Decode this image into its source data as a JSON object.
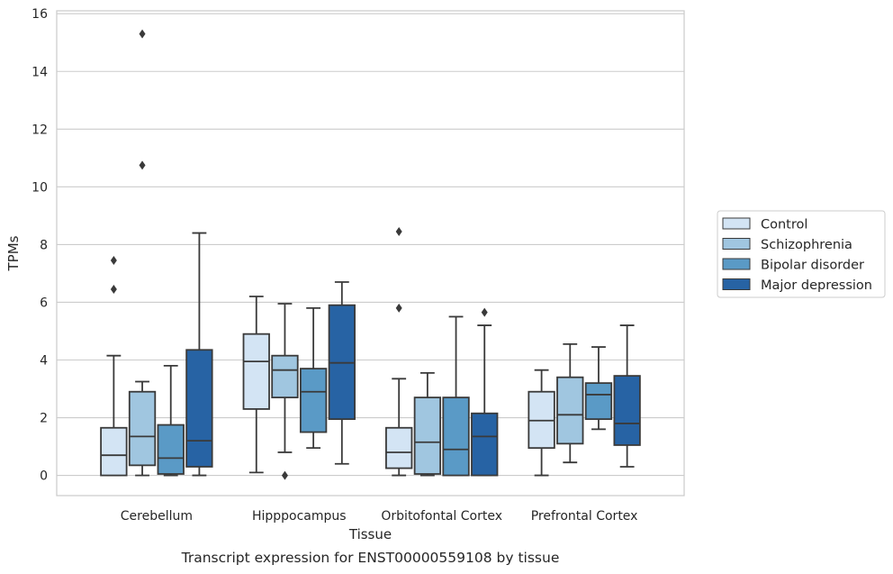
{
  "caption": "Transcript expression for ENST00000559108 by tissue",
  "chart_data": {
    "type": "boxplot",
    "title": "",
    "xlabel": "Tissue",
    "ylabel": "TPMs",
    "ylim": [
      -0.7,
      16.1
    ],
    "yticks": [
      0,
      2,
      4,
      6,
      8,
      10,
      12,
      14,
      16
    ],
    "grid": "horizontal",
    "legend_position": "right",
    "categories": [
      "Cerebellum",
      "Hipppocampus",
      "Orbitofontal Cortex",
      "Prefrontal Cortex"
    ],
    "series": [
      {
        "name": "Control",
        "color": "#d3e4f4",
        "boxes": [
          {
            "whisker_low": 0.0,
            "q1": 0.0,
            "median": 0.7,
            "q3": 1.65,
            "whisker_high": 4.15,
            "outliers": [
              6.45,
              7.45
            ]
          },
          {
            "whisker_low": 0.1,
            "q1": 2.3,
            "median": 3.95,
            "q3": 4.9,
            "whisker_high": 6.2,
            "outliers": []
          },
          {
            "whisker_low": 0.0,
            "q1": 0.25,
            "median": 0.8,
            "q3": 1.65,
            "whisker_high": 3.35,
            "outliers": [
              5.8,
              8.45
            ]
          },
          {
            "whisker_low": 0.0,
            "q1": 0.95,
            "median": 1.9,
            "q3": 2.9,
            "whisker_high": 3.65,
            "outliers": []
          }
        ]
      },
      {
        "name": "Schizophrenia",
        "color": "#a0c6e0",
        "boxes": [
          {
            "whisker_low": 0.0,
            "q1": 0.35,
            "median": 1.35,
            "q3": 2.9,
            "whisker_high": 3.25,
            "outliers": [
              10.75,
              15.3
            ]
          },
          {
            "whisker_low": 0.8,
            "q1": 2.7,
            "median": 3.65,
            "q3": 4.15,
            "whisker_high": 5.95,
            "outliers": [
              0.0
            ]
          },
          {
            "whisker_low": 0.0,
            "q1": 0.05,
            "median": 1.15,
            "q3": 2.7,
            "whisker_high": 3.55,
            "outliers": []
          },
          {
            "whisker_low": 0.45,
            "q1": 1.1,
            "median": 2.1,
            "q3": 3.4,
            "whisker_high": 4.55,
            "outliers": []
          }
        ]
      },
      {
        "name": "Bipolar disorder",
        "color": "#5a9ac6",
        "boxes": [
          {
            "whisker_low": 0.0,
            "q1": 0.05,
            "median": 0.6,
            "q3": 1.75,
            "whisker_high": 3.8,
            "outliers": []
          },
          {
            "whisker_low": 0.95,
            "q1": 1.5,
            "median": 2.9,
            "q3": 3.7,
            "whisker_high": 5.8,
            "outliers": []
          },
          {
            "whisker_low": 0.0,
            "q1": 0.0,
            "median": 0.9,
            "q3": 2.7,
            "whisker_high": 5.5,
            "outliers": []
          },
          {
            "whisker_low": 1.6,
            "q1": 1.95,
            "median": 2.8,
            "q3": 3.2,
            "whisker_high": 4.45,
            "outliers": []
          }
        ]
      },
      {
        "name": "Major depression",
        "color": "#2763a4",
        "boxes": [
          {
            "whisker_low": 0.0,
            "q1": 0.3,
            "median": 1.2,
            "q3": 4.35,
            "whisker_high": 8.4,
            "outliers": []
          },
          {
            "whisker_low": 0.4,
            "q1": 1.95,
            "median": 3.9,
            "q3": 5.9,
            "whisker_high": 6.7,
            "outliers": []
          },
          {
            "whisker_low": 0.0,
            "q1": 0.0,
            "median": 1.35,
            "q3": 2.15,
            "whisker_high": 5.2,
            "outliers": [
              5.65
            ]
          },
          {
            "whisker_low": 0.3,
            "q1": 1.05,
            "median": 1.8,
            "q3": 3.45,
            "whisker_high": 5.2,
            "outliers": []
          }
        ]
      }
    ]
  }
}
